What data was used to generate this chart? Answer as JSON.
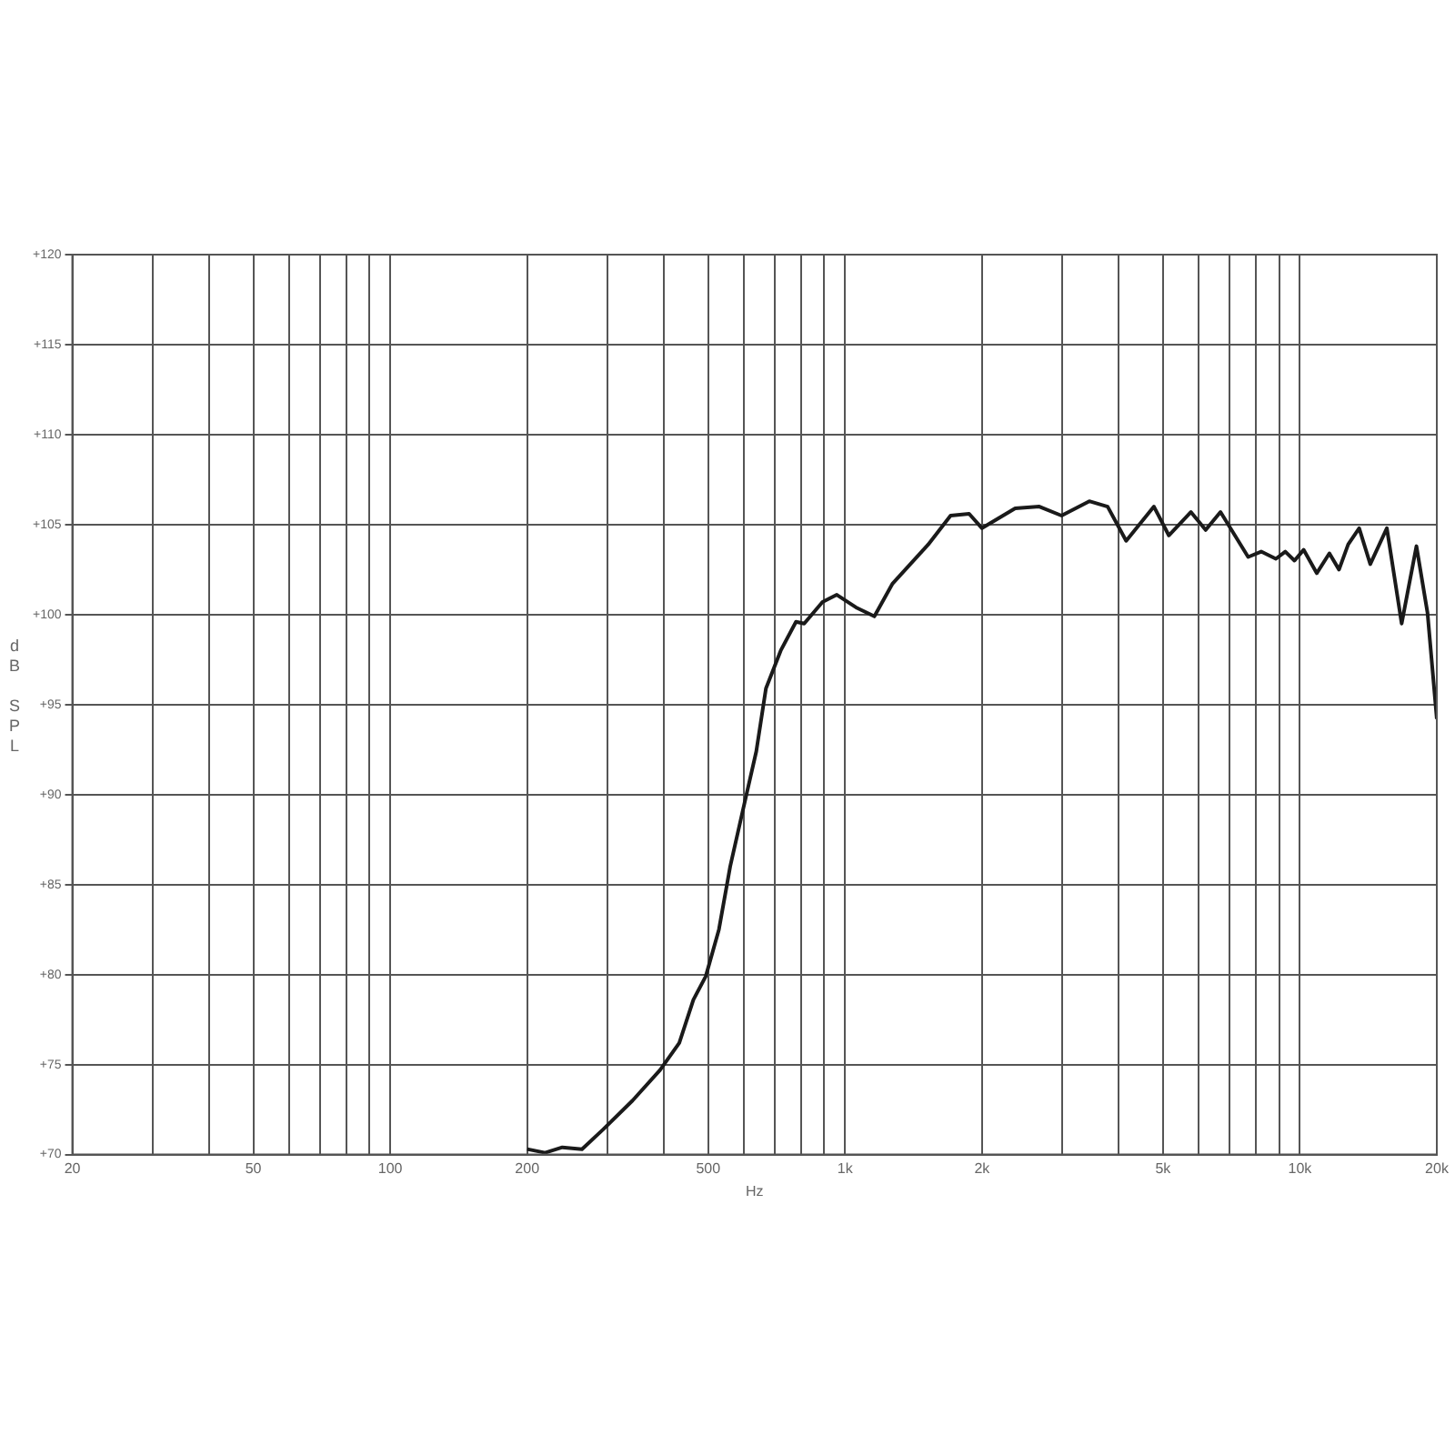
{
  "chart_data": {
    "type": "line",
    "xlabel": "Hz",
    "ylabel": "dB SPL",
    "log": "x",
    "grid": true,
    "legend": false,
    "marker": "none",
    "line_style": "solid",
    "xlim": [
      20,
      20000
    ],
    "xticks": [
      20,
      {
        "value": 30,
        "label": null
      },
      {
        "value": 40,
        "label": null
      },
      50,
      {
        "value": 60,
        "label": null
      },
      {
        "value": 70,
        "label": null
      },
      {
        "value": 80,
        "label": null
      },
      {
        "value": 90,
        "label": null
      },
      100,
      200,
      {
        "value": 300,
        "label": null
      },
      {
        "value": 400,
        "label": null
      },
      500,
      {
        "value": 600,
        "label": null
      },
      {
        "value": 700,
        "label": null
      },
      {
        "value": 800,
        "label": null
      },
      {
        "value": 900,
        "label": null
      },
      {
        "value": 1000,
        "label": "1k"
      },
      {
        "value": 2000,
        "label": "2k"
      },
      {
        "value": 3000,
        "label": null
      },
      {
        "value": 4000,
        "label": null
      },
      {
        "value": 5000,
        "label": "5k"
      },
      {
        "value": 6000,
        "label": null
      },
      {
        "value": 7000,
        "label": null
      },
      {
        "value": 8000,
        "label": null
      },
      {
        "value": 9000,
        "label": null
      },
      {
        "value": 10000,
        "label": "10k"
      },
      {
        "value": 20000,
        "label": "20k"
      }
    ],
    "ylim": [
      70,
      120
    ],
    "yticks": [
      {
        "value": 70,
        "label": "+70"
      },
      {
        "value": 75,
        "label": "+75"
      },
      {
        "value": 80,
        "label": "+80"
      },
      {
        "value": 85,
        "label": "+85"
      },
      {
        "value": 90,
        "label": "+90"
      },
      {
        "value": 95,
        "label": "+95"
      },
      {
        "value": 100,
        "label": "+100"
      },
      {
        "value": 105,
        "label": "+105"
      },
      {
        "value": 110,
        "label": "+110"
      },
      {
        "value": 115,
        "label": "+115"
      },
      {
        "value": 120,
        "label": "+120"
      }
    ],
    "series": [
      {
        "color": "#1a1a1a",
        "x": [
          200,
          219,
          239,
          264,
          294,
          341,
          392,
          432,
          464,
          494,
          528,
          559,
          597,
          638,
          670,
          722,
          780,
          813,
          892,
          959,
          1057,
          1160,
          1270,
          1524,
          1706,
          1874,
          2000,
          2366,
          2674,
          2992,
          3443,
          3778,
          4150,
          4776,
          5150,
          5758,
          6206,
          6690,
          7696,
          8220,
          8856,
          9288,
          9730,
          10190,
          10890,
          11610,
          12190,
          12770,
          13500,
          14280,
          15530,
          16740,
          18040,
          19080,
          20000
        ],
        "values": [
          70.3,
          70.1,
          70.4,
          70.3,
          71.4,
          73.0,
          74.7,
          76.2,
          78.6,
          79.9,
          82.5,
          86.0,
          89.2,
          92.4,
          95.9,
          98.0,
          99.6,
          99.5,
          100.7,
          101.1,
          100.4,
          99.9,
          101.7,
          103.9,
          105.5,
          105.6,
          104.8,
          105.9,
          106.0,
          105.5,
          106.3,
          106.0,
          104.1,
          106.0,
          104.4,
          105.7,
          104.7,
          105.7,
          103.2,
          103.5,
          103.1,
          103.5,
          103.0,
          103.6,
          102.3,
          103.4,
          102.5,
          103.9,
          104.8,
          102.8,
          104.8,
          99.5,
          103.8,
          100.1,
          94.2
        ]
      }
    ]
  }
}
